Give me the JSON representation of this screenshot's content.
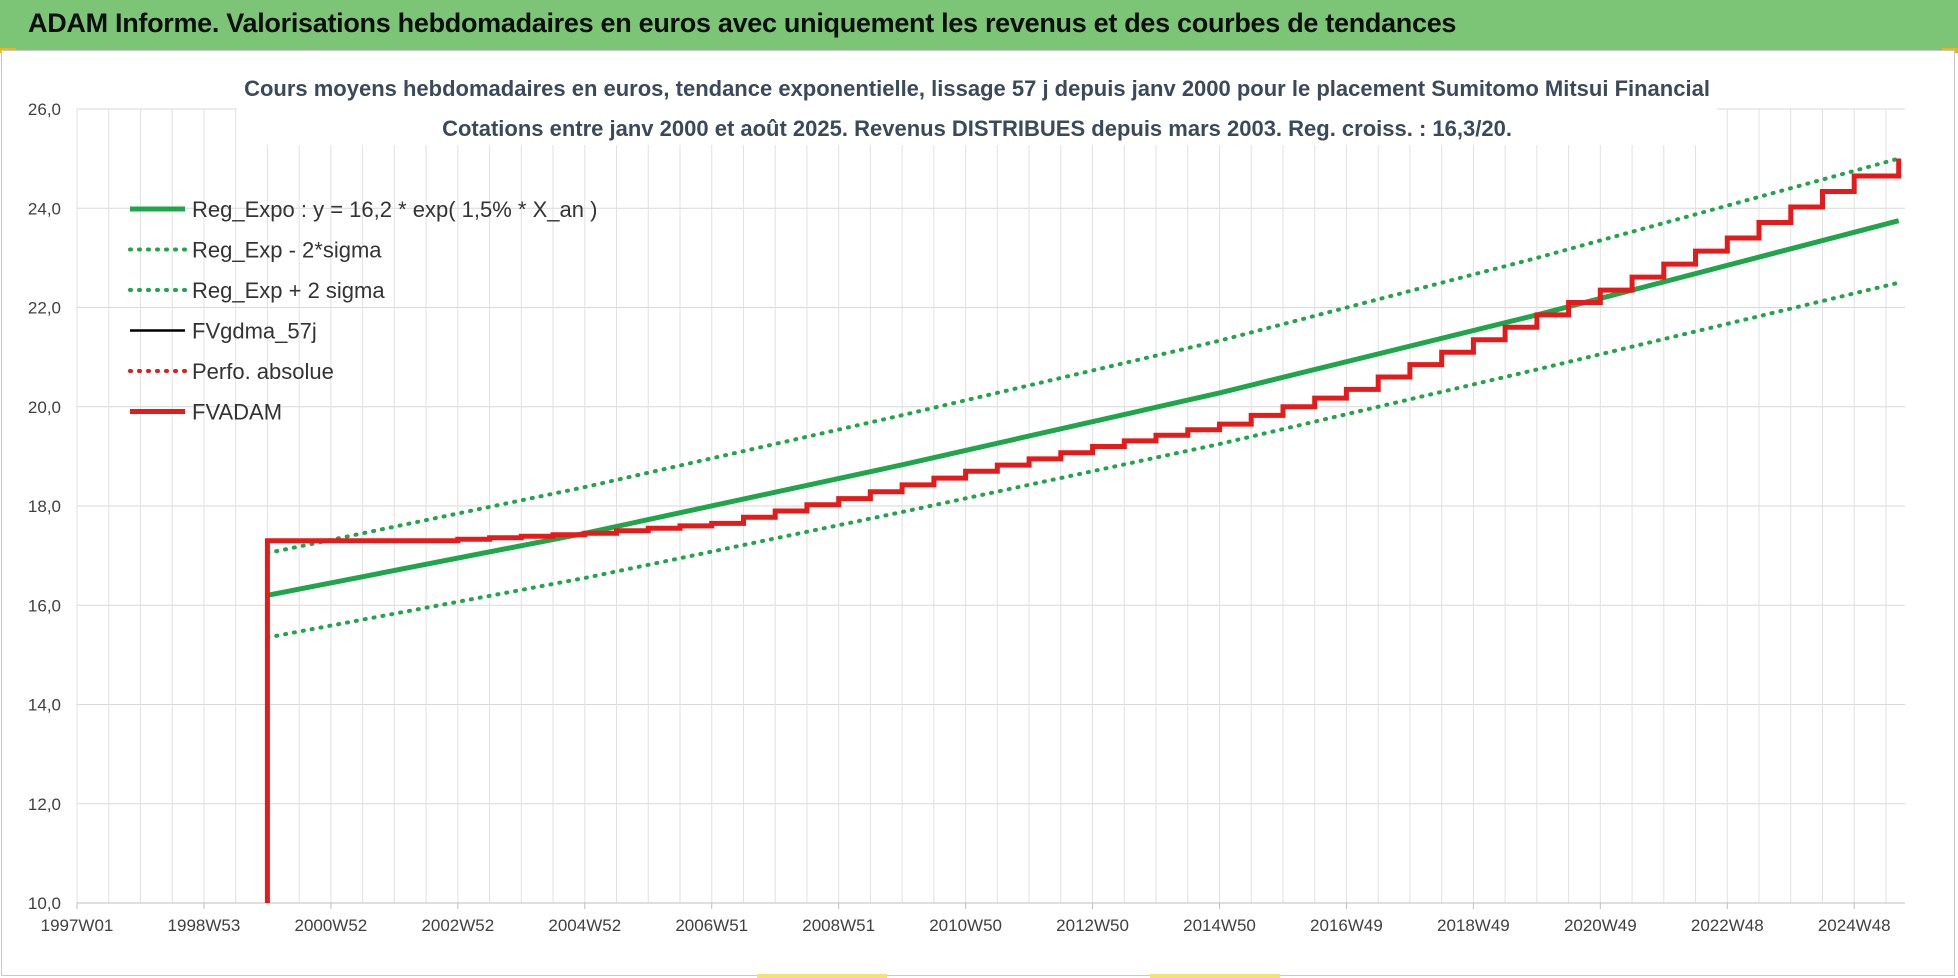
{
  "header": {
    "title": "ADAM Informe. Valorisations hebdomadaires en euros avec uniquement les revenus et des courbes de tendances"
  },
  "colors": {
    "header_bg": "#7cc576",
    "reg_green": "#1fa64a",
    "black": "#000000",
    "red": "#e31b1b"
  },
  "chart_data": {
    "type": "line",
    "title_lines": [
      "Cours moyens hebdomadaires en euros, tendance exponentielle, lissage 57 j depuis janv 2000 pour le placement Sumitomo Mitsui Financial",
      "Cotations entre janv 2000 et août 2025. Revenus DISTRIBUES depuis mars 2003. Reg. croiss. : 16,3/20."
    ],
    "xlabel": "",
    "ylabel": "",
    "x_range_years": [
      1997.0,
      2025.8
    ],
    "ylim": [
      10,
      26
    ],
    "y_ticks": [
      "10,0",
      "12,0",
      "14,0",
      "16,0",
      "18,0",
      "20,0",
      "22,0",
      "24,0",
      "26,0"
    ],
    "x_ticks": [
      {
        "label": "1997W01",
        "year": 1997.0
      },
      {
        "label": "1998W53",
        "year": 1999.0
      },
      {
        "label": "2000W52",
        "year": 2001.0
      },
      {
        "label": "2002W52",
        "year": 2003.0
      },
      {
        "label": "2004W52",
        "year": 2005.0
      },
      {
        "label": "2006W51",
        "year": 2007.0
      },
      {
        "label": "2008W51",
        "year": 2009.0
      },
      {
        "label": "2010W50",
        "year": 2011.0
      },
      {
        "label": "2012W50",
        "year": 2013.0
      },
      {
        "label": "2014W50",
        "year": 2015.0
      },
      {
        "label": "2016W49",
        "year": 2017.0
      },
      {
        "label": "2018W49",
        "year": 2019.0
      },
      {
        "label": "2020W49",
        "year": 2021.0
      },
      {
        "label": "2022W48",
        "year": 2023.0
      },
      {
        "label": "2024W48",
        "year": 2025.0
      }
    ],
    "grid": true,
    "legend_position": "top-left",
    "series": [
      {
        "name": "Reg_Expo : y = 16,2 * exp( 1,5% *  X_an )",
        "style": "solid-thick",
        "color": "#1fa64a",
        "points": [
          [
            2000.0,
            16.2
          ],
          [
            2005.0,
            17.45
          ],
          [
            2010.0,
            18.83
          ],
          [
            2015.0,
            20.28
          ],
          [
            2020.0,
            21.85
          ],
          [
            2025.7,
            23.75
          ]
        ]
      },
      {
        "name": "Reg_Exp - 2*sigma",
        "style": "dotted",
        "color": "#1fa64a",
        "points": [
          [
            2000.0,
            15.35
          ],
          [
            2005.0,
            16.55
          ],
          [
            2010.0,
            17.88
          ],
          [
            2015.0,
            19.25
          ],
          [
            2020.0,
            20.75
          ],
          [
            2025.7,
            22.5
          ]
        ]
      },
      {
        "name": "Reg_Exp + 2 sigma",
        "style": "dotted",
        "color": "#1fa64a",
        "points": [
          [
            2000.0,
            17.05
          ],
          [
            2005.0,
            18.38
          ],
          [
            2010.0,
            19.83
          ],
          [
            2015.0,
            21.33
          ],
          [
            2020.0,
            23.0
          ],
          [
            2025.7,
            25.0
          ]
        ]
      },
      {
        "name": "FVgdma_57j",
        "style": "solid",
        "color": "#000000",
        "points": [
          [
            2000.0,
            17.3
          ],
          [
            2002.5,
            17.3
          ],
          [
            2005.0,
            17.45
          ],
          [
            2007.0,
            17.65
          ],
          [
            2009.0,
            18.15
          ],
          [
            2011.0,
            18.7
          ],
          [
            2013.0,
            19.2
          ],
          [
            2015.0,
            19.65
          ],
          [
            2017.0,
            20.35
          ],
          [
            2019.0,
            21.35
          ],
          [
            2021.0,
            22.35
          ],
          [
            2023.0,
            23.4
          ],
          [
            2025.0,
            24.65
          ],
          [
            2025.7,
            25.0
          ]
        ]
      },
      {
        "name": "Perfo. absolue",
        "style": "dotted",
        "color": "#e31b1b",
        "points": []
      },
      {
        "name": "FVADAM",
        "style": "solid-thick",
        "color": "#e31b1b",
        "start_y": 10.0,
        "points": [
          [
            2000.0,
            17.3
          ],
          [
            2002.5,
            17.3
          ],
          [
            2005.0,
            17.45
          ],
          [
            2007.0,
            17.65
          ],
          [
            2009.0,
            18.15
          ],
          [
            2011.0,
            18.7
          ],
          [
            2013.0,
            19.2
          ],
          [
            2015.0,
            19.65
          ],
          [
            2017.0,
            20.35
          ],
          [
            2019.0,
            21.35
          ],
          [
            2021.0,
            22.35
          ],
          [
            2023.0,
            23.4
          ],
          [
            2025.0,
            24.65
          ],
          [
            2025.7,
            25.0
          ]
        ]
      }
    ]
  }
}
